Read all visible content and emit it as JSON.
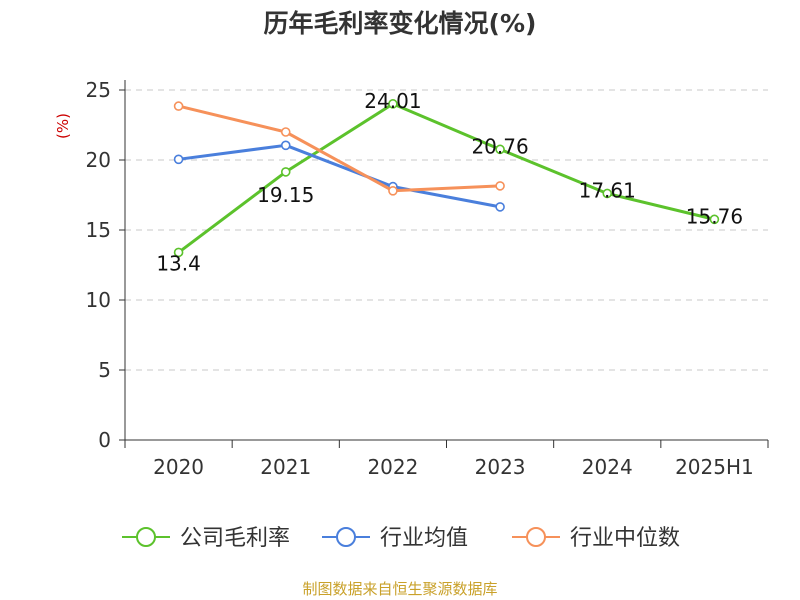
{
  "chart_data": {
    "type": "line",
    "title": "历年毛利率变化情况(%)",
    "unit": "(%)",
    "categories": [
      "2020",
      "2021",
      "2022",
      "2023",
      "2024",
      "2025H1"
    ],
    "ylim": [
      0,
      25
    ],
    "yticks": [
      "0",
      "5",
      "10",
      "15",
      "20",
      "25"
    ],
    "grid": true,
    "legend_position": "bottom",
    "series": [
      {
        "name": "公司毛利率",
        "color": "#5cc22c",
        "values": [
          13.4,
          19.15,
          24.01,
          20.76,
          17.61,
          15.76
        ],
        "labels": [
          "13.4",
          "19.15",
          "24.01",
          "20.76",
          "17.61",
          "15.76"
        ]
      },
      {
        "name": "行业均值",
        "color": "#4a7fdc",
        "values": [
          20.05,
          21.05,
          18.1,
          16.65,
          null,
          null
        ]
      },
      {
        "name": "行业中位数",
        "color": "#f6915a",
        "values": [
          23.85,
          22.0,
          17.8,
          18.15,
          null,
          null
        ]
      }
    ],
    "source": "制图数据来自恒生聚源数据库"
  }
}
